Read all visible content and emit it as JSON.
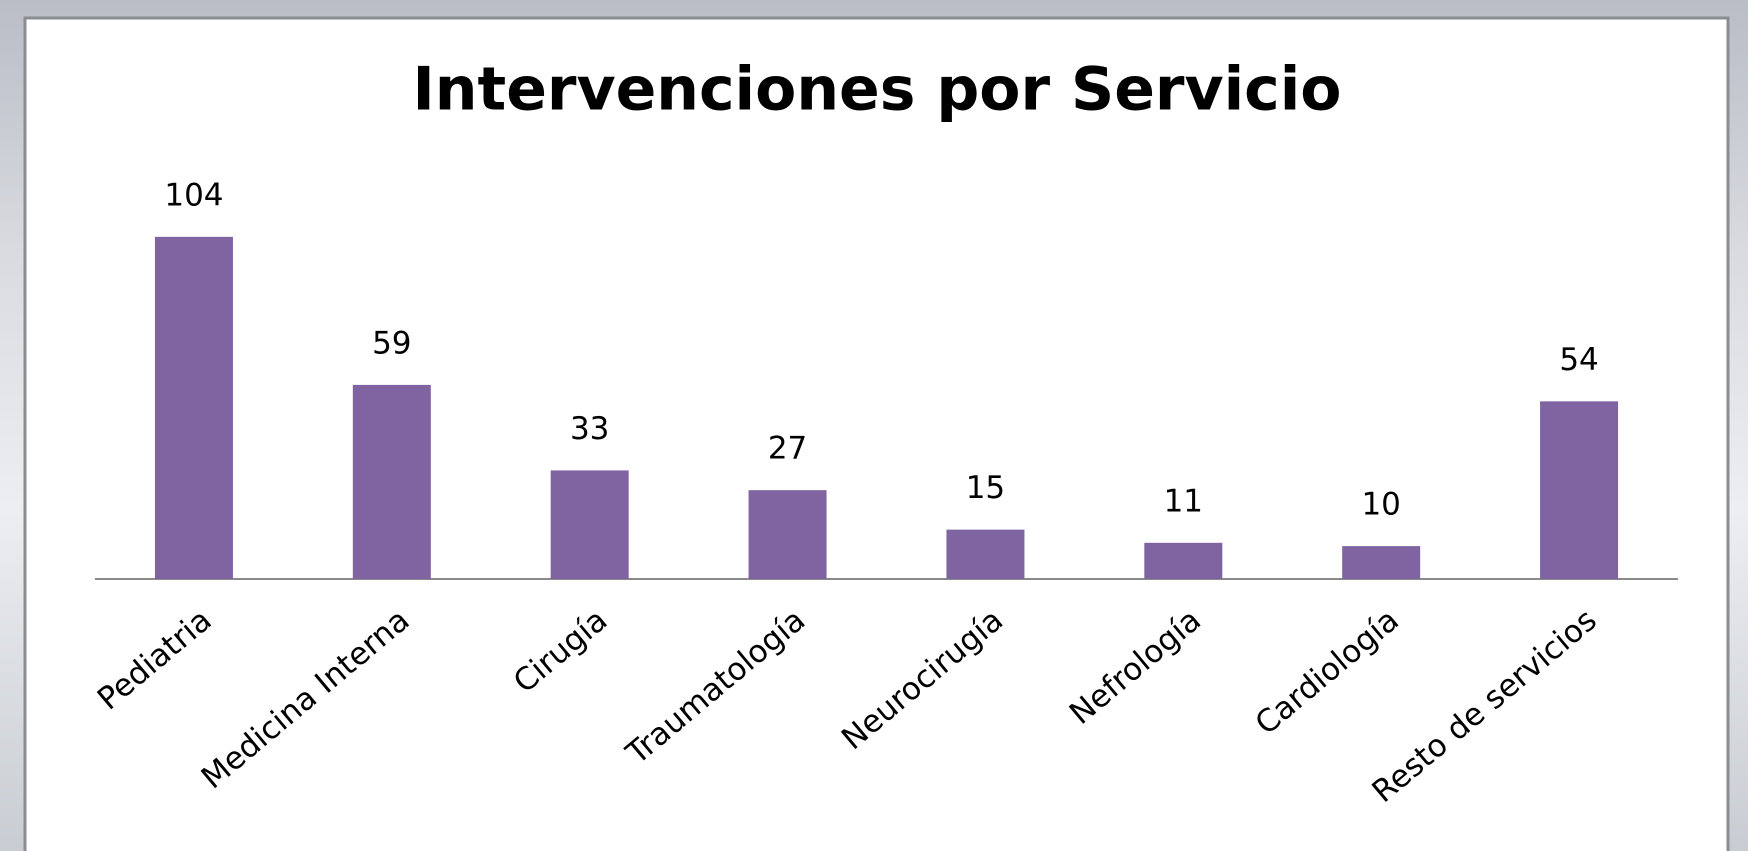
{
  "chart_data": {
    "type": "bar",
    "title": "Intervenciones por Servicio",
    "categories": [
      "Pediatria",
      "Medicina Interna",
      "Cirugía",
      "Traumatología",
      "Neurocirugía",
      "Nefrología",
      "Cardiología",
      "Resto de servicios"
    ],
    "values": [
      104,
      59,
      33,
      27,
      15,
      11,
      10,
      54
    ],
    "color": "#8064a2"
  }
}
